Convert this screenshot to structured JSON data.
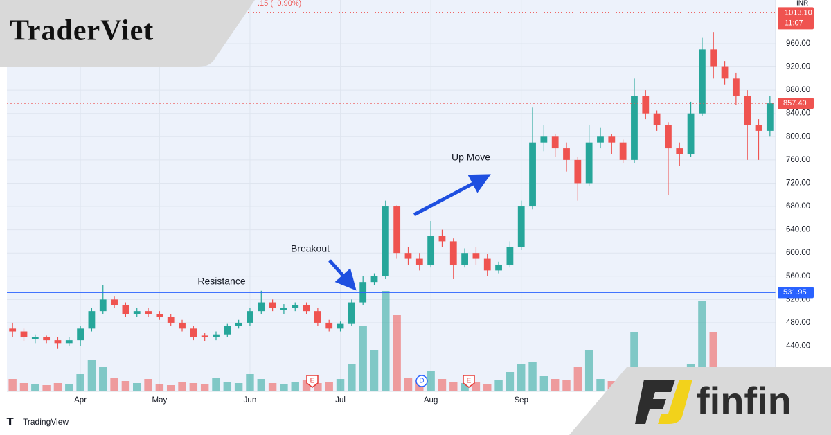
{
  "brand": "TraderViet",
  "partner": "finfin",
  "source": "TradingView",
  "header": ".15 (−0.90%)",
  "currency": "INR",
  "chart_data": {
    "type": "candlestick",
    "categories": [
      null,
      null,
      null,
      null,
      null,
      null,
      "Apr",
      null,
      null,
      null,
      null,
      null,
      null,
      "May",
      null,
      null,
      null,
      null,
      null,
      null,
      null,
      "Jun",
      null,
      null,
      null,
      null,
      null,
      null,
      null,
      "Jul",
      null,
      null,
      null,
      null,
      null,
      null,
      null,
      "Aug",
      null,
      null,
      null,
      null,
      null,
      null,
      null,
      "Sep",
      null,
      null,
      null,
      null,
      null,
      null,
      null,
      null,
      null,
      null,
      null,
      null,
      null,
      null,
      null,
      null,
      null,
      null,
      null,
      null,
      null,
      null
    ],
    "open": [
      470,
      465,
      452,
      455,
      450,
      445,
      450,
      470,
      500,
      520,
      510,
      495,
      500,
      495,
      490,
      480,
      470,
      458,
      455,
      460,
      475,
      480,
      500,
      515,
      502,
      505,
      510,
      500,
      480,
      470,
      478,
      515,
      550,
      560,
      680,
      600,
      590,
      580,
      630,
      620,
      580,
      600,
      590,
      570,
      580,
      610,
      680,
      790,
      800,
      780,
      760,
      720,
      790,
      800,
      790,
      760,
      870,
      840,
      820,
      780,
      770,
      840,
      950,
      920,
      900,
      870,
      820,
      810
    ],
    "high": [
      480,
      470,
      460,
      458,
      455,
      455,
      475,
      505,
      545,
      525,
      515,
      505,
      505,
      500,
      495,
      485,
      475,
      462,
      465,
      478,
      485,
      505,
      535,
      520,
      512,
      515,
      515,
      505,
      485,
      482,
      520,
      560,
      565,
      690,
      682,
      610,
      600,
      655,
      640,
      625,
      608,
      610,
      598,
      585,
      620,
      690,
      850,
      820,
      805,
      790,
      765,
      820,
      815,
      805,
      795,
      900,
      880,
      845,
      825,
      790,
      860,
      970,
      980,
      930,
      910,
      880,
      830,
      870
    ],
    "low": [
      455,
      448,
      445,
      445,
      435,
      440,
      440,
      465,
      495,
      505,
      490,
      490,
      490,
      485,
      475,
      465,
      450,
      448,
      450,
      455,
      470,
      475,
      495,
      500,
      495,
      500,
      495,
      475,
      465,
      465,
      475,
      510,
      545,
      555,
      590,
      580,
      570,
      575,
      610,
      555,
      575,
      580,
      560,
      565,
      575,
      605,
      675,
      775,
      765,
      740,
      690,
      715,
      780,
      770,
      755,
      755,
      830,
      810,
      700,
      750,
      765,
      835,
      900,
      890,
      855,
      760,
      760,
      800
    ],
    "close": [
      465,
      455,
      455,
      450,
      445,
      450,
      470,
      500,
      520,
      510,
      495,
      500,
      495,
      490,
      480,
      470,
      455,
      455,
      460,
      475,
      480,
      500,
      515,
      505,
      505,
      510,
      500,
      480,
      470,
      478,
      515,
      550,
      560,
      680,
      600,
      590,
      580,
      630,
      620,
      580,
      600,
      590,
      570,
      580,
      610,
      680,
      790,
      800,
      780,
      760,
      720,
      790,
      800,
      790,
      760,
      870,
      840,
      820,
      780,
      770,
      840,
      950,
      920,
      900,
      870,
      820,
      810,
      857.4
    ],
    "volume": [
      18,
      12,
      10,
      9,
      12,
      10,
      25,
      45,
      35,
      20,
      15,
      12,
      18,
      10,
      9,
      14,
      12,
      10,
      20,
      14,
      12,
      25,
      18,
      12,
      10,
      14,
      16,
      12,
      14,
      18,
      40,
      95,
      60,
      145,
      110,
      20,
      16,
      30,
      18,
      14,
      12,
      14,
      10,
      16,
      28,
      40,
      42,
      22,
      18,
      16,
      35,
      60,
      18,
      15,
      20,
      85,
      30,
      25,
      30,
      20,
      40,
      130,
      85,
      30,
      20,
      22,
      15,
      12
    ],
    "volume_ylim": [
      0,
      200
    ],
    "up_color": "#26a69a",
    "down_color": "#ef5350",
    "ylim": [
      362,
      1035
    ],
    "yticks": [
      {
        "value": 440,
        "label": "440.00"
      },
      {
        "value": 480,
        "label": "480.00"
      },
      {
        "value": 520,
        "label": "520.00"
      },
      {
        "value": 560,
        "label": "560.00"
      },
      {
        "value": 600,
        "label": "600.00"
      },
      {
        "value": 640,
        "label": "640.00"
      },
      {
        "value": 680,
        "label": "680.00"
      },
      {
        "value": 720,
        "label": "720.00"
      },
      {
        "value": 760,
        "label": "760.00"
      },
      {
        "value": 800,
        "label": "800.00"
      },
      {
        "value": 840,
        "label": "840.00"
      },
      {
        "value": 880,
        "label": "880.00"
      },
      {
        "value": 920,
        "label": "920.00"
      },
      {
        "value": 960,
        "label": "960.00"
      }
    ],
    "grid": true,
    "resistance": 531.95,
    "last_price": {
      "value": 857.4,
      "label": "857.40"
    },
    "quote": {
      "value": 1013.1,
      "label": "1013.10"
    },
    "quote_time": "11:07",
    "events": [
      "E",
      "D",
      "E"
    ],
    "annotations": [
      "Resistance",
      "Breakout",
      "Up Move"
    ]
  }
}
